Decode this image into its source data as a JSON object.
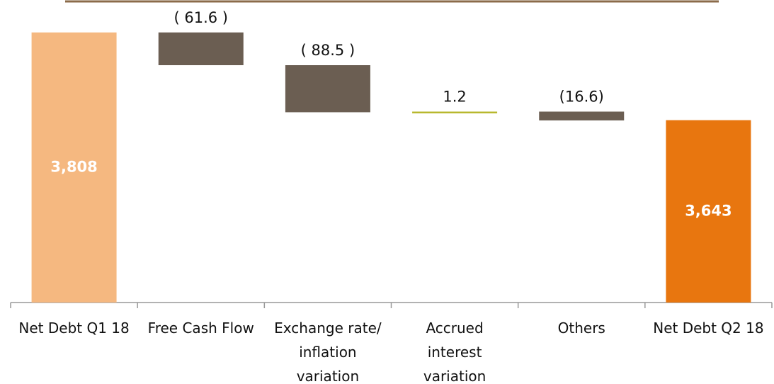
{
  "chart_data": {
    "type": "waterfall",
    "categories": [
      "Net Debt Q1 18",
      "Free Cash Flow",
      "Exchange rate/\ninflation\nvariation",
      "Accrued\ninterest\nvariation",
      "Others",
      "Net Debt Q2 18"
    ],
    "values": [
      3808,
      -61.6,
      -88.5,
      1.2,
      -16.6,
      3643
    ],
    "value_labels": [
      "3,808",
      "( 61.6 )",
      "( 88.5 )",
      "1.2",
      "(16.6)",
      "3,643"
    ],
    "colors": [
      "#f5b880",
      "#6b5e52",
      "#6b5e52",
      "#b8b82e",
      "#6b5e52",
      "#e8760f"
    ],
    "ylim": [
      3300,
      3869
    ]
  }
}
